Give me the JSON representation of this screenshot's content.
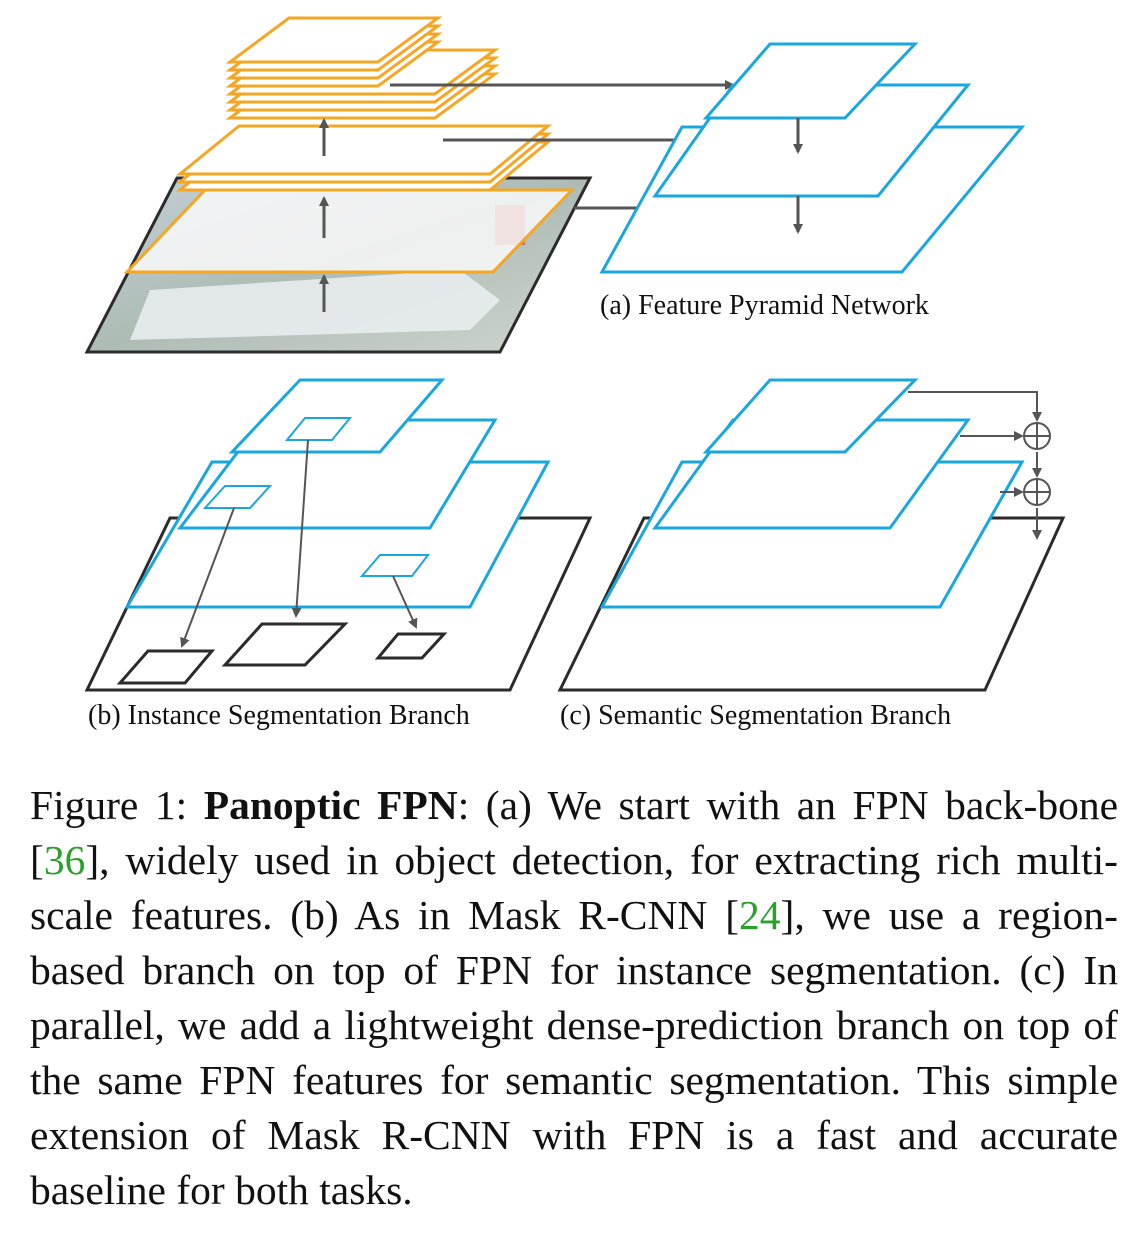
{
  "figure": {
    "colors": {
      "orange": "#f5a623",
      "blue": "#1aa7e0",
      "black": "#2b2b2b",
      "arrow": "#555555",
      "citation": "#2ca02c"
    },
    "labels": {
      "a": "(a) Feature Pyramid Network",
      "b": "(b) Instance Segmentation Branch",
      "c": "(c) Semantic Segmentation Branch"
    },
    "plus_symbol": "⊕"
  },
  "caption": {
    "figure_label": "Figure 1: ",
    "bold_title": "Panoptic FPN",
    "text_1": ": (a) We start with an FPN back-bone [",
    "cite_1": "36",
    "text_2": "], widely used in object detection, for extracting rich multi-scale features.  (b) As in Mask R-CNN [",
    "cite_2": "24",
    "text_3": "], we use a region-based branch on top of FPN for instance segmentation. (c) In parallel, we add a lightweight dense-prediction branch on top of the same FPN features for semantic segmentation.  This simple extension of Mask R-CNN with FPN is a fast and accurate baseline for both tasks."
  }
}
